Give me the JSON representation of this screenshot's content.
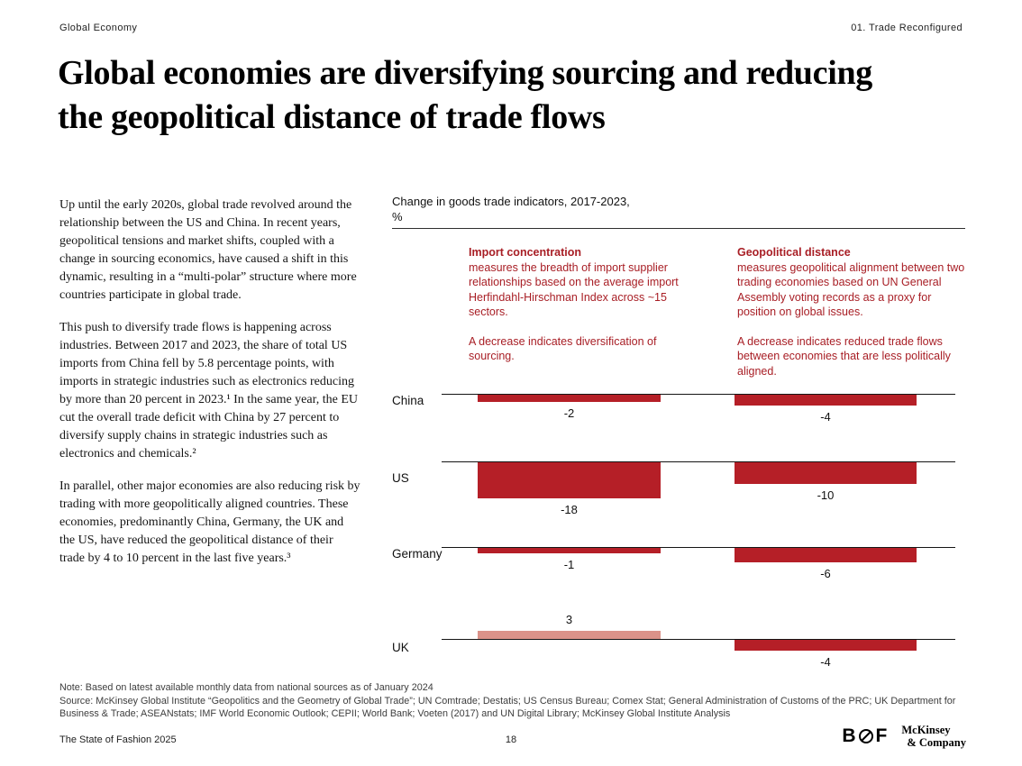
{
  "page": {
    "header_left": "Global Economy",
    "header_right": "01. Trade Reconfigured",
    "title": "Global economies are diversifying sourcing and reducing the geopolitical distance of trade flows",
    "paragraphs": [
      "Up until the early 2020s, global trade revolved around the relationship between the US and China. In recent years, geopolitical tensions and market shifts, coupled with a change in sourcing economics, have caused a shift in this dynamic, resulting in a “multi-polar” structure where more countries participate in global trade.",
      "This push to diversify trade flows is happening across industries. Between 2017 and 2023, the share of total US imports from China fell by 5.8 percentage points, with imports in strategic industries such as electronics reducing by more than 20 percent in 2023.¹ In the same year, the EU cut the overall trade deficit with China by 27 percent to diversify supply chains in strategic industries such as electronics and chemicals.²",
      "In parallel, other major economies are also reducing risk by trading with more geopolitically aligned countries. These economies, predominantly China, Germany, the UK and the US, have reduced the geopolitical distance of their trade by 4 to 10 percent in the last five years.³"
    ],
    "note": "Note: Based on latest available monthly data from national sources as of January 2024",
    "source": "Source: McKinsey Global Institute “Geopolitics and the Geometry of Global Trade”; UN Comtrade; Destatis; US Census Bureau; Comex Stat; General Administration of Customs of the PRC; UK Department for Business & Trade; ASEANstats; IMF World Economic Outlook; CEPII; World Bank; Voeten (2017) and UN Digital Library; McKinsey Global Institute Analysis",
    "footer_left": "The State of Fashion 2025",
    "page_number": "18",
    "bof_b": "B",
    "bof_f": "F",
    "mckinsey_line1": "McKinsey",
    "mckinsey_line2": "& Company"
  },
  "chart": {
    "title": "Change in goods trade indicators, 2017-2023,",
    "unit": "%",
    "columns": [
      {
        "name": "Import concentration",
        "description": "measures the breadth of import supplier relationships based on the average import Herfindahl-Hirschman Index across ~15 sectors.",
        "note": "A decrease indicates diversification of sourcing."
      },
      {
        "name": "Geopolitical distance",
        "description": "measures geopolitical alignment between two trading economies based on UN General Assembly voting records as a proxy for position on global issues.",
        "note": "A decrease indicates reduced trade flows between economies that are less politically aligned."
      }
    ]
  },
  "chart_data": {
    "type": "bar",
    "title": "Change in goods trade indicators, 2017-2023, %",
    "unit": "%",
    "orientation": "vertical-from-baseline",
    "baseline": 0,
    "categories": [
      "China",
      "US",
      "Germany",
      "UK"
    ],
    "series": [
      {
        "name": "Import concentration",
        "values": [
          -2,
          -18,
          -1,
          3
        ]
      },
      {
        "name": "Geopolitical distance",
        "values": [
          -4,
          -10,
          -6,
          -4
        ]
      }
    ],
    "colors": {
      "negative_bar": "#b51f27",
      "positive_bar": "#db9289"
    }
  }
}
